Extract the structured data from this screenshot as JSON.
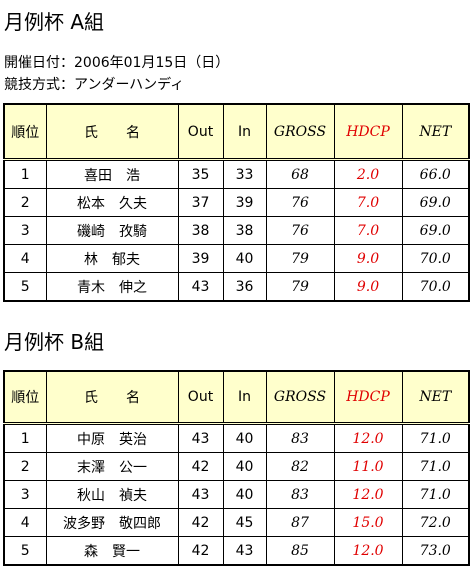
{
  "sections": [
    {
      "title": "月例杯 A組",
      "info": [
        "開催日付：2006年01月15日（日）",
        "競技方式：アンダーハンディ"
      ],
      "table": {
        "headers": [
          "順位",
          "氏　　名",
          "Out",
          "In",
          "GROSS",
          "HDCP",
          "NET"
        ],
        "rows": [
          [
            "1",
            "喜田　浩",
            "35",
            "33",
            "68",
            "2.0",
            "66.0"
          ],
          [
            "2",
            "松本　久夫",
            "37",
            "39",
            "76",
            "7.0",
            "69.0"
          ],
          [
            "3",
            "磯崎　孜騎",
            "38",
            "38",
            "76",
            "7.0",
            "69.0"
          ],
          [
            "4",
            "林　郁夫",
            "39",
            "40",
            "79",
            "9.0",
            "70.0"
          ],
          [
            "5",
            "青木　伸之",
            "43",
            "36",
            "79",
            "9.0",
            "70.0"
          ]
        ]
      }
    },
    {
      "title": "月例杯 B組",
      "table": {
        "headers": [
          "順位",
          "氏　　名",
          "Out",
          "In",
          "GROSS",
          "HDCP",
          "NET"
        ],
        "rows": [
          [
            "1",
            "中原　英治",
            "43",
            "40",
            "83",
            "12.0",
            "71.0"
          ],
          [
            "2",
            "末澤　公一",
            "42",
            "40",
            "82",
            "11.0",
            "71.0"
          ],
          [
            "3",
            "秋山　禎夫",
            "43",
            "40",
            "83",
            "12.0",
            "71.0"
          ],
          [
            "4",
            "波多野　敬四郎",
            "42",
            "45",
            "87",
            "15.0",
            "72.0"
          ],
          [
            "5",
            "森　賢一",
            "42",
            "43",
            "85",
            "12.0",
            "73.0"
          ]
        ]
      }
    }
  ]
}
